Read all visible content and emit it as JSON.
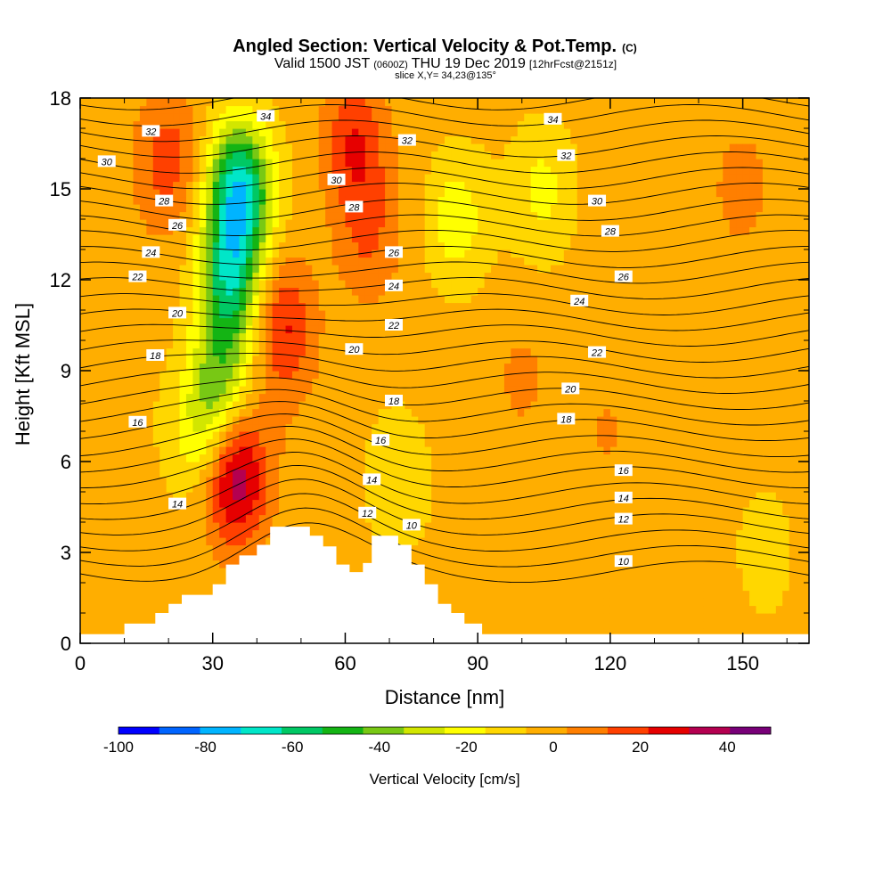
{
  "header": {
    "title": "Angled Section: Vertical Velocity & Pot.Temp.",
    "title_units": "(C)",
    "valid_prefix": "Valid 1500 JST",
    "valid_zulu": "(0600Z)",
    "valid_date": "THU 19 Dec 2019",
    "forecast": "[12hrFcst@2151z]",
    "slice": "slice X,Y= 34,23@135°"
  },
  "chart_data": {
    "type": "heatmap",
    "xlabel": "Distance [nm]",
    "ylabel": "Height [Kft MSL]",
    "xlim": [
      0,
      165
    ],
    "ylim": [
      0,
      18
    ],
    "x_ticks": [
      "0",
      "30",
      "60",
      "90",
      "120",
      "150"
    ],
    "y_ticks": [
      "0",
      "3",
      "6",
      "9",
      "12",
      "15",
      "18"
    ],
    "colorbar": {
      "title": "Vertical Velocity [cm/s]",
      "labels": [
        "-100",
        "-80",
        "-60",
        "-40",
        "-20",
        "0",
        "20",
        "40"
      ],
      "bounds": [
        -100,
        -90,
        -80,
        -70,
        -60,
        -50,
        -40,
        -30,
        -20,
        -10,
        0,
        10,
        20,
        30,
        40,
        50
      ],
      "colors": [
        "#0000ff",
        "#0064ff",
        "#00b4ff",
        "#00e6c8",
        "#00c864",
        "#14b414",
        "#78c814",
        "#d2e600",
        "#ffff00",
        "#ffd700",
        "#ffae00",
        "#ff7f00",
        "#ff4000",
        "#e60000",
        "#b40050",
        "#780078"
      ]
    },
    "terrain": [
      [
        0,
        0.3
      ],
      [
        10,
        0.3
      ],
      [
        10,
        0.65
      ],
      [
        17,
        0.65
      ],
      [
        17,
        1.0
      ],
      [
        20,
        1.0
      ],
      [
        20,
        1.3
      ],
      [
        23,
        1.3
      ],
      [
        23,
        1.6
      ],
      [
        30,
        1.6
      ],
      [
        30,
        1.95
      ],
      [
        33,
        1.95
      ],
      [
        33,
        2.6
      ],
      [
        36,
        2.6
      ],
      [
        36,
        2.9
      ],
      [
        40,
        2.9
      ],
      [
        40,
        3.25
      ],
      [
        43,
        3.25
      ],
      [
        43,
        3.85
      ],
      [
        52,
        3.85
      ],
      [
        52,
        3.55
      ],
      [
        55,
        3.55
      ],
      [
        55,
        3.2
      ],
      [
        58,
        3.2
      ],
      [
        58,
        2.6
      ],
      [
        61,
        2.6
      ],
      [
        61,
        2.35
      ],
      [
        64,
        2.35
      ],
      [
        64,
        2.65
      ],
      [
        66,
        2.65
      ],
      [
        66,
        3.55
      ],
      [
        72,
        3.55
      ],
      [
        72,
        3.25
      ],
      [
        75,
        3.25
      ],
      [
        75,
        2.6
      ],
      [
        78,
        2.6
      ],
      [
        78,
        1.95
      ],
      [
        81,
        1.95
      ],
      [
        81,
        1.3
      ],
      [
        84,
        1.3
      ],
      [
        84,
        1.0
      ],
      [
        87,
        1.0
      ],
      [
        87,
        0.65
      ],
      [
        91,
        0.65
      ],
      [
        91,
        0.3
      ],
      [
        165,
        0.3
      ]
    ],
    "vv_field_blobs": [
      {
        "x": 36,
        "y": 15.0,
        "v": -70
      },
      {
        "x": 34,
        "y": 12.0,
        "v": -55
      },
      {
        "x": 32,
        "y": 9.0,
        "v": -30
      },
      {
        "x": 28,
        "y": 7.0,
        "v": -25
      },
      {
        "x": 35,
        "y": 5.5,
        "v": 45
      },
      {
        "x": 46,
        "y": 10.5,
        "v": 28
      },
      {
        "x": 20,
        "y": 16.0,
        "v": 20
      },
      {
        "x": 62,
        "y": 16.5,
        "v": 25
      },
      {
        "x": 65,
        "y": 13.5,
        "v": 15
      },
      {
        "x": 85,
        "y": 14.0,
        "v": -20
      },
      {
        "x": 105,
        "y": 15.0,
        "v": -15
      },
      {
        "x": 150,
        "y": 15.0,
        "v": 12
      },
      {
        "x": 120,
        "y": 7.0,
        "v": 8
      },
      {
        "x": 100,
        "y": 9.0,
        "v": 6
      },
      {
        "x": 72,
        "y": 5.0,
        "v": -12
      },
      {
        "x": 155,
        "y": 3.5,
        "v": -8
      }
    ],
    "contour_levels": [
      10,
      12,
      14,
      16,
      18,
      20,
      22,
      24,
      26,
      28,
      30,
      32,
      34
    ],
    "contour_labels": [
      {
        "text": "34",
        "x": 42,
        "y": 17.4
      },
      {
        "text": "32",
        "x": 16,
        "y": 16.9
      },
      {
        "text": "30",
        "x": 6,
        "y": 15.9
      },
      {
        "text": "28",
        "x": 19,
        "y": 14.6
      },
      {
        "text": "26",
        "x": 22,
        "y": 13.8
      },
      {
        "text": "24",
        "x": 16,
        "y": 12.9
      },
      {
        "text": "22",
        "x": 13,
        "y": 12.1
      },
      {
        "text": "20",
        "x": 22,
        "y": 10.9
      },
      {
        "text": "18",
        "x": 17,
        "y": 9.5
      },
      {
        "text": "16",
        "x": 13,
        "y": 7.3
      },
      {
        "text": "14",
        "x": 22,
        "y": 4.6
      },
      {
        "text": "30",
        "x": 58,
        "y": 15.3
      },
      {
        "text": "28",
        "x": 62,
        "y": 14.4
      },
      {
        "text": "32",
        "x": 74,
        "y": 16.6
      },
      {
        "text": "26",
        "x": 71,
        "y": 12.9
      },
      {
        "text": "24",
        "x": 71,
        "y": 11.8
      },
      {
        "text": "22",
        "x": 71,
        "y": 10.5
      },
      {
        "text": "20",
        "x": 62,
        "y": 9.7
      },
      {
        "text": "18",
        "x": 71,
        "y": 8.0
      },
      {
        "text": "16",
        "x": 68,
        "y": 6.7
      },
      {
        "text": "14",
        "x": 66,
        "y": 5.4
      },
      {
        "text": "12",
        "x": 65,
        "y": 4.3
      },
      {
        "text": "10",
        "x": 75,
        "y": 3.9
      },
      {
        "text": "34",
        "x": 107,
        "y": 17.3
      },
      {
        "text": "32",
        "x": 110,
        "y": 16.1
      },
      {
        "text": "30",
        "x": 117,
        "y": 14.6
      },
      {
        "text": "28",
        "x": 120,
        "y": 13.6
      },
      {
        "text": "26",
        "x": 123,
        "y": 12.1
      },
      {
        "text": "24",
        "x": 113,
        "y": 11.3
      },
      {
        "text": "22",
        "x": 117,
        "y": 9.6
      },
      {
        "text": "20",
        "x": 111,
        "y": 8.4
      },
      {
        "text": "18",
        "x": 110,
        "y": 7.4
      },
      {
        "text": "16",
        "x": 123,
        "y": 5.7
      },
      {
        "text": "14",
        "x": 123,
        "y": 4.8
      },
      {
        "text": "12",
        "x": 123,
        "y": 4.1
      },
      {
        "text": "10",
        "x": 123,
        "y": 2.7
      }
    ]
  }
}
